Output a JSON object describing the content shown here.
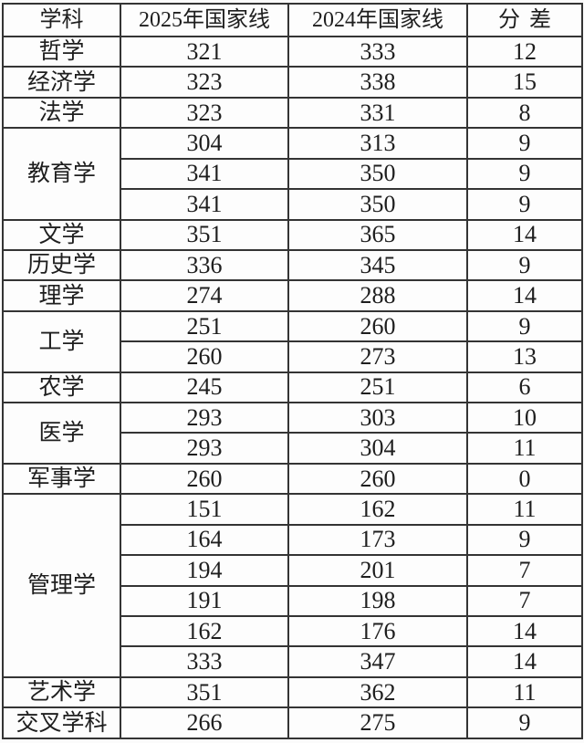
{
  "table": {
    "headers": {
      "subject": "学科",
      "line2025": "2025年国家线",
      "line2024": "2024年国家线",
      "diff": "分差"
    },
    "groups": [
      {
        "subject": "哲学",
        "rows": [
          [
            "321",
            "333",
            "12"
          ]
        ]
      },
      {
        "subject": "经济学",
        "rows": [
          [
            "323",
            "338",
            "15"
          ]
        ]
      },
      {
        "subject": "法学",
        "rows": [
          [
            "323",
            "331",
            "8"
          ]
        ]
      },
      {
        "subject": "教育学",
        "rows": [
          [
            "304",
            "313",
            "9"
          ],
          [
            "341",
            "350",
            "9"
          ],
          [
            "341",
            "350",
            "9"
          ]
        ]
      },
      {
        "subject": "文学",
        "rows": [
          [
            "351",
            "365",
            "14"
          ]
        ]
      },
      {
        "subject": "历史学",
        "rows": [
          [
            "336",
            "345",
            "9"
          ]
        ]
      },
      {
        "subject": "理学",
        "rows": [
          [
            "274",
            "288",
            "14"
          ]
        ]
      },
      {
        "subject": "工学",
        "rows": [
          [
            "251",
            "260",
            "9"
          ],
          [
            "260",
            "273",
            "13"
          ]
        ]
      },
      {
        "subject": "农学",
        "rows": [
          [
            "245",
            "251",
            "6"
          ]
        ]
      },
      {
        "subject": "医学",
        "rows": [
          [
            "293",
            "303",
            "10"
          ],
          [
            "293",
            "304",
            "11"
          ]
        ]
      },
      {
        "subject": "军事学",
        "rows": [
          [
            "260",
            "260",
            "0"
          ]
        ]
      },
      {
        "subject": "管理学",
        "rows": [
          [
            "151",
            "162",
            "11"
          ],
          [
            "164",
            "173",
            "9"
          ],
          [
            "194",
            "201",
            "7"
          ],
          [
            "191",
            "198",
            "7"
          ],
          [
            "162",
            "176",
            "14"
          ],
          [
            "333",
            "347",
            "14"
          ]
        ]
      },
      {
        "subject": "艺术学",
        "rows": [
          [
            "351",
            "362",
            "11"
          ]
        ]
      },
      {
        "subject": "交叉学科",
        "rows": [
          [
            "266",
            "275",
            "9"
          ]
        ]
      }
    ]
  },
  "chart_data": {
    "type": "table",
    "columns": [
      "学科",
      "2025年国家线",
      "2024年国家线",
      "分差"
    ],
    "rows": [
      [
        "哲学",
        321,
        333,
        12
      ],
      [
        "经济学",
        323,
        338,
        15
      ],
      [
        "法学",
        323,
        331,
        8
      ],
      [
        "教育学",
        304,
        313,
        9
      ],
      [
        "教育学",
        341,
        350,
        9
      ],
      [
        "教育学",
        341,
        350,
        9
      ],
      [
        "文学",
        351,
        365,
        14
      ],
      [
        "历史学",
        336,
        345,
        9
      ],
      [
        "理学",
        274,
        288,
        14
      ],
      [
        "工学",
        251,
        260,
        9
      ],
      [
        "工学",
        260,
        273,
        13
      ],
      [
        "农学",
        245,
        251,
        6
      ],
      [
        "医学",
        293,
        303,
        10
      ],
      [
        "医学",
        293,
        304,
        11
      ],
      [
        "军事学",
        260,
        260,
        0
      ],
      [
        "管理学",
        151,
        162,
        11
      ],
      [
        "管理学",
        164,
        173,
        9
      ],
      [
        "管理学",
        194,
        201,
        7
      ],
      [
        "管理学",
        191,
        198,
        7
      ],
      [
        "管理学",
        162,
        176,
        14
      ],
      [
        "管理学",
        333,
        347,
        14
      ],
      [
        "艺术学",
        351,
        362,
        11
      ],
      [
        "交叉学科",
        266,
        275,
        9
      ]
    ],
    "merged_subject_rowspans": {
      "教育学": 3,
      "工学": 2,
      "医学": 2,
      "管理学": 6
    },
    "title": "",
    "grid": true,
    "text_color": "#1e1e1e",
    "border_color": "#343434",
    "background_color": "#fdfdfd"
  }
}
